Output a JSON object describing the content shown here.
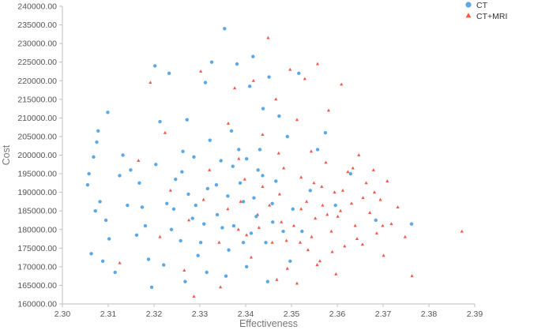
{
  "chart_data": {
    "type": "scatter",
    "xlabel": "Effectiveness",
    "ylabel": "Cost",
    "xlim": [
      2.3,
      2.39
    ],
    "ylim": [
      160000,
      240000
    ],
    "x_ticks": [
      "2.30",
      "2.31",
      "2.32",
      "2.33",
      "2.34",
      "2.35",
      "2.36",
      "2.37",
      "2.38",
      "2.39"
    ],
    "y_ticks": [
      "160000.00",
      "165000.00",
      "170000.00",
      "175000.00",
      "180000.00",
      "185000.00",
      "190000.00",
      "195000.00",
      "200000.00",
      "205000.00",
      "210000.00",
      "215000.00",
      "220000.00",
      "225000.00",
      "230000.00",
      "235000.00",
      "240000.00"
    ],
    "grid": false,
    "legend_position": "top-right",
    "series": [
      {
        "name": "CT",
        "marker": "circle",
        "color": "#5aa9e6",
        "points": [
          [
            2.3055,
            192000
          ],
          [
            2.3058,
            195000
          ],
          [
            2.3063,
            173500
          ],
          [
            2.3068,
            199500
          ],
          [
            2.3072,
            185000
          ],
          [
            2.3075,
            203500
          ],
          [
            2.3078,
            206500
          ],
          [
            2.3082,
            187500
          ],
          [
            2.3088,
            171500
          ],
          [
            2.3095,
            182500
          ],
          [
            2.3099,
            211500
          ],
          [
            2.3102,
            177500
          ],
          [
            2.3115,
            168500
          ],
          [
            2.3125,
            194500
          ],
          [
            2.3132,
            200000
          ],
          [
            2.3142,
            186500
          ],
          [
            2.3149,
            196000
          ],
          [
            2.3162,
            178500
          ],
          [
            2.3174,
            186000
          ],
          [
            2.3181,
            181000
          ],
          [
            2.3195,
            164500
          ],
          [
            2.3202,
            224000
          ],
          [
            2.3213,
            209000
          ],
          [
            2.3228,
            187000
          ],
          [
            2.3233,
            222000
          ],
          [
            2.3247,
            193500
          ],
          [
            2.3258,
            177000
          ],
          [
            2.3263,
            201000
          ],
          [
            2.3272,
            209500
          ],
          [
            2.3284,
            183000
          ],
          [
            2.3291,
            186500
          ],
          [
            2.3302,
            176500
          ],
          [
            2.3312,
            219500
          ],
          [
            2.3317,
            191000
          ],
          [
            2.3326,
            225000
          ],
          [
            2.3338,
            184000
          ],
          [
            2.3346,
            198500
          ],
          [
            2.3354,
            234000
          ],
          [
            2.3361,
            189000
          ],
          [
            2.3369,
            206500
          ],
          [
            2.3374,
            181000
          ],
          [
            2.3381,
            224500
          ],
          [
            2.3388,
            192500
          ],
          [
            2.3395,
            187500
          ],
          [
            2.3402,
            199000
          ],
          [
            2.3409,
            218500
          ],
          [
            2.3416,
            226500
          ],
          [
            2.3423,
            183500
          ],
          [
            2.3431,
            201500
          ],
          [
            2.3438,
            212500
          ],
          [
            2.3444,
            176500
          ],
          [
            2.3451,
            221000
          ],
          [
            2.3458,
            187000
          ],
          [
            2.3466,
            193000
          ],
          [
            2.3473,
            210500
          ],
          [
            2.3482,
            179500
          ],
          [
            2.3491,
            205000
          ],
          [
            2.3503,
            185500
          ],
          [
            2.3516,
            222000
          ],
          [
            2.3523,
            179500
          ],
          [
            2.3541,
            190500
          ],
          [
            2.3557,
            201500
          ],
          [
            2.3574,
            206000
          ],
          [
            2.3596,
            186500
          ],
          [
            2.3629,
            195000
          ],
          [
            2.3684,
            182500
          ],
          [
            2.3762,
            181500
          ],
          [
            2.3188,
            172000
          ],
          [
            2.3221,
            170500
          ],
          [
            2.3268,
            166000
          ],
          [
            2.3315,
            168500
          ],
          [
            2.3357,
            167500
          ],
          [
            2.3402,
            170000
          ],
          [
            2.3448,
            166000
          ],
          [
            2.3497,
            171500
          ],
          [
            2.3261,
            195500
          ],
          [
            2.3287,
            199500
          ],
          [
            2.3322,
            204000
          ],
          [
            2.3349,
            180500
          ],
          [
            2.3372,
            197000
          ],
          [
            2.3395,
            176500
          ],
          [
            2.3418,
            188500
          ],
          [
            2.3437,
            194500
          ],
          [
            2.3459,
            182000
          ],
          [
            2.3243,
            185500
          ],
          [
            2.3275,
            189500
          ],
          [
            2.3309,
            181500
          ],
          [
            2.3336,
            192000
          ],
          [
            2.3363,
            174500
          ],
          [
            2.3385,
            201500
          ],
          [
            2.3412,
            179000
          ],
          [
            2.3427,
            196000
          ],
          [
            2.3168,
            192500
          ],
          [
            2.3204,
            197500
          ],
          [
            2.3238,
            180000
          ],
          [
            2.3296,
            173000
          ]
        ]
      },
      {
        "name": "CT+MRI",
        "marker": "triangle",
        "color": "#ef5a4b",
        "points": [
          [
            2.3125,
            171000
          ],
          [
            2.3166,
            198500
          ],
          [
            2.3192,
            219500
          ],
          [
            2.3224,
            206000
          ],
          [
            2.3266,
            169000
          ],
          [
            2.3287,
            162000
          ],
          [
            2.3302,
            222500
          ],
          [
            2.3321,
            196000
          ],
          [
            2.3345,
            164500
          ],
          [
            2.3362,
            208500
          ],
          [
            2.3376,
            218000
          ],
          [
            2.3389,
            187500
          ],
          [
            2.3402,
            178500
          ],
          [
            2.3417,
            220000
          ],
          [
            2.3426,
            184000
          ],
          [
            2.3437,
            205500
          ],
          [
            2.3449,
            231500
          ],
          [
            2.3458,
            176500
          ],
          [
            2.3466,
            215000
          ],
          [
            2.3474,
            189500
          ],
          [
            2.3483,
            196500
          ],
          [
            2.3491,
            169500
          ],
          [
            2.3497,
            223000
          ],
          [
            2.3505,
            181000
          ],
          [
            2.3512,
            209500
          ],
          [
            2.3521,
            185500
          ],
          [
            2.3529,
            220500
          ],
          [
            2.3536,
            174500
          ],
          [
            2.3543,
            201000
          ],
          [
            2.3549,
            192500
          ],
          [
            2.3557,
            224500
          ],
          [
            2.3562,
            171500
          ],
          [
            2.3568,
            186500
          ],
          [
            2.3575,
            198000
          ],
          [
            2.3581,
            212000
          ],
          [
            2.3587,
            179500
          ],
          [
            2.3594,
            190000
          ],
          [
            2.3601,
            183500
          ],
          [
            2.3609,
            219000
          ],
          [
            2.3616,
            175500
          ],
          [
            2.3623,
            195500
          ],
          [
            2.3631,
            187000
          ],
          [
            2.3639,
            181000
          ],
          [
            2.3647,
            200000
          ],
          [
            2.3655,
            176000
          ],
          [
            2.3663,
            192500
          ],
          [
            2.3671,
            184500
          ],
          [
            2.3679,
            196000
          ],
          [
            2.3686,
            179000
          ],
          [
            2.3694,
            188000
          ],
          [
            2.3701,
            173000
          ],
          [
            2.3709,
            193000
          ],
          [
            2.3718,
            181500
          ],
          [
            2.3732,
            186000
          ],
          [
            2.3748,
            178000
          ],
          [
            2.3763,
            167500
          ],
          [
            2.3872,
            179500
          ],
          [
            2.3468,
            166500
          ],
          [
            2.3512,
            165500
          ],
          [
            2.3556,
            170500
          ],
          [
            2.3597,
            168000
          ],
          [
            2.3412,
            172500
          ],
          [
            2.3384,
            180000
          ],
          [
            2.3437,
            191500
          ],
          [
            2.3478,
            182000
          ],
          [
            2.3521,
            194000
          ],
          [
            2.3544,
            178000
          ],
          [
            2.3578,
            184000
          ],
          [
            2.3612,
            190500
          ],
          [
            2.3643,
            177500
          ],
          [
            2.3361,
            185500
          ],
          [
            2.3398,
            193500
          ],
          [
            2.3452,
            186500
          ],
          [
            2.3489,
            177000
          ],
          [
            2.3533,
            187500
          ],
          [
            2.3566,
            191500
          ],
          [
            2.3607,
            185000
          ],
          [
            2.3656,
            188500
          ],
          [
            2.3699,
            181000
          ],
          [
            2.3308,
            188000
          ],
          [
            2.3342,
            176500
          ],
          [
            2.3385,
            199000
          ],
          [
            2.3429,
            180500
          ],
          [
            2.3472,
            200500
          ],
          [
            2.3519,
            176500
          ],
          [
            2.3552,
            183000
          ],
          [
            2.3589,
            174000
          ],
          [
            2.3634,
            196500
          ],
          [
            2.3681,
            190000
          ],
          [
            2.3276,
            182500
          ],
          [
            2.3236,
            190500
          ],
          [
            2.3213,
            178000
          ]
        ]
      }
    ]
  }
}
